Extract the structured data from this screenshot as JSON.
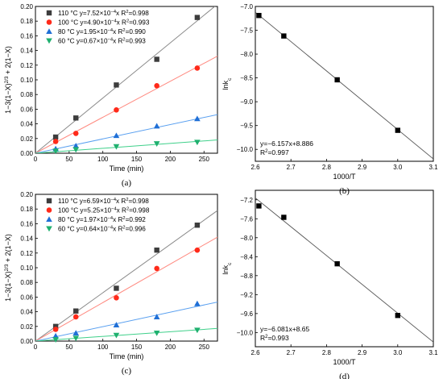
{
  "colors": {
    "s110": "#3d3d3d",
    "s100": "#ff2a1a",
    "s80": "#1f6fd6",
    "s60": "#1fb06f",
    "fit_gray": "#8a8a8a",
    "fit_red": "#ff8a80",
    "fit_blue": "#5aa0f0",
    "fit_green": "#3fd08a",
    "inset_marker": "#000000"
  },
  "chart_data": [
    {
      "id": "a",
      "panel_label": "(a)",
      "type": "scatter",
      "xlabel": "Time (min)",
      "ylabel": "1−3(1−X)2/3 + 2(1−X)",
      "xlim": [
        0,
        270
      ],
      "ylim": [
        0,
        0.2
      ],
      "xticks": [
        0,
        50,
        100,
        150,
        200,
        250
      ],
      "yticks": [
        0.0,
        0.02,
        0.04,
        0.06,
        0.08,
        0.1,
        0.12,
        0.14,
        0.16,
        0.18,
        0.2
      ],
      "legend_position": "top-left",
      "series": [
        {
          "name": "110 °C y=7.52×10−4x R2=0.998",
          "marker": "square",
          "color_key": "s110",
          "fit_key": "fit_gray",
          "slope": 0.000752,
          "x": [
            30,
            60,
            120,
            180,
            240
          ],
          "y": [
            0.022,
            0.048,
            0.093,
            0.128,
            0.185
          ]
        },
        {
          "name": "100 °C y=4.90×10−4x R2=0.993",
          "marker": "circle",
          "color_key": "s100",
          "fit_key": "fit_red",
          "slope": 0.00049,
          "x": [
            30,
            60,
            120,
            180,
            240
          ],
          "y": [
            0.016,
            0.027,
            0.059,
            0.092,
            0.116
          ]
        },
        {
          "name": "80 °C y=1.95×10−4x R2=0.990",
          "marker": "triangle-up",
          "color_key": "s80",
          "fit_key": "fit_blue",
          "slope": 0.000195,
          "x": [
            30,
            60,
            120,
            180,
            240
          ],
          "y": [
            0.006,
            0.01,
            0.024,
            0.037,
            0.047
          ]
        },
        {
          "name": "60 °C y=0.67×10−4x R2=0.993",
          "marker": "triangle-down",
          "color_key": "s60",
          "fit_key": "fit_green",
          "slope": 6.7e-05,
          "x": [
            30,
            60,
            120,
            180,
            240
          ],
          "y": [
            0.003,
            0.005,
            0.009,
            0.013,
            0.015
          ]
        }
      ]
    },
    {
      "id": "b",
      "panel_label": "(b)",
      "type": "scatter",
      "xlabel": "1000/T",
      "ylabel": "lnkc",
      "xlim": [
        2.6,
        3.1
      ],
      "ylim": [
        -10.25,
        -7.0
      ],
      "xticks": [
        2.6,
        2.7,
        2.8,
        2.9,
        3.0,
        3.1
      ],
      "yticks": [
        -7.0,
        -7.5,
        -8.0,
        -8.5,
        -9.0,
        -9.5,
        -10.0
      ],
      "annotation_line1": "y=−6.157x+8.886",
      "annotation_line2": "R2=0.997",
      "fit": {
        "slope": -6.157,
        "intercept": 8.886
      },
      "points": {
        "x": [
          2.61,
          2.68,
          2.83,
          3.0
        ],
        "y": [
          -7.19,
          -7.62,
          -8.54,
          -9.6
        ]
      }
    },
    {
      "id": "c",
      "panel_label": "(c)",
      "type": "scatter",
      "xlabel": "Time (min)",
      "ylabel": "1−3(1−X)2/3 + 2(1−X)",
      "xlim": [
        0,
        270
      ],
      "ylim": [
        0,
        0.2
      ],
      "xticks": [
        0,
        50,
        100,
        150,
        200,
        250
      ],
      "yticks": [
        0.0,
        0.02,
        0.04,
        0.06,
        0.08,
        0.1,
        0.12,
        0.14,
        0.16,
        0.18,
        0.2
      ],
      "legend_position": "top-left",
      "series": [
        {
          "name": "110 °C y=6.59×10−4x R2=0.998",
          "marker": "square",
          "color_key": "s110",
          "fit_key": "fit_gray",
          "slope": 0.000659,
          "x": [
            30,
            60,
            120,
            180,
            240
          ],
          "y": [
            0.02,
            0.041,
            0.072,
            0.124,
            0.158
          ]
        },
        {
          "name": "100 °C y=5.25×10−4x R2=0.998",
          "marker": "circle",
          "color_key": "s100",
          "fit_key": "fit_red",
          "slope": 0.000525,
          "x": [
            30,
            60,
            120,
            180,
            240
          ],
          "y": [
            0.016,
            0.033,
            0.059,
            0.099,
            0.124
          ]
        },
        {
          "name": "80 °C y=1.97×10−4x R2=0.992",
          "marker": "triangle-up",
          "color_key": "s80",
          "fit_key": "fit_blue",
          "slope": 0.000197,
          "x": [
            30,
            60,
            120,
            180,
            240
          ],
          "y": [
            0.007,
            0.011,
            0.022,
            0.033,
            0.051
          ]
        },
        {
          "name": "60 °C y=0.64×10−4x R2=0.996",
          "marker": "triangle-down",
          "color_key": "s60",
          "fit_key": "fit_green",
          "slope": 6.4e-05,
          "x": [
            30,
            60,
            120,
            180,
            240
          ],
          "y": [
            0.002,
            0.004,
            0.008,
            0.011,
            0.015
          ]
        }
      ]
    },
    {
      "id": "d",
      "panel_label": "(d)",
      "type": "scatter",
      "xlabel": "1000/T",
      "ylabel": "lnkc",
      "xlim": [
        2.6,
        3.1
      ],
      "ylim": [
        -10.3,
        -7.0
      ],
      "xticks": [
        2.6,
        2.7,
        2.8,
        2.9,
        3.0,
        3.1
      ],
      "yticks": [
        -7.2,
        -7.6,
        -8.0,
        -8.4,
        -8.8,
        -9.2,
        -9.6,
        -10.0
      ],
      "annotation_line1": "y=−6.081x+8.65",
      "annotation_line2": "R2=0.993",
      "fit": {
        "slope": -6.081,
        "intercept": 8.65
      },
      "points": {
        "x": [
          2.61,
          2.68,
          2.83,
          3.0
        ],
        "y": [
          -7.33,
          -7.57,
          -8.55,
          -9.64
        ]
      }
    }
  ]
}
